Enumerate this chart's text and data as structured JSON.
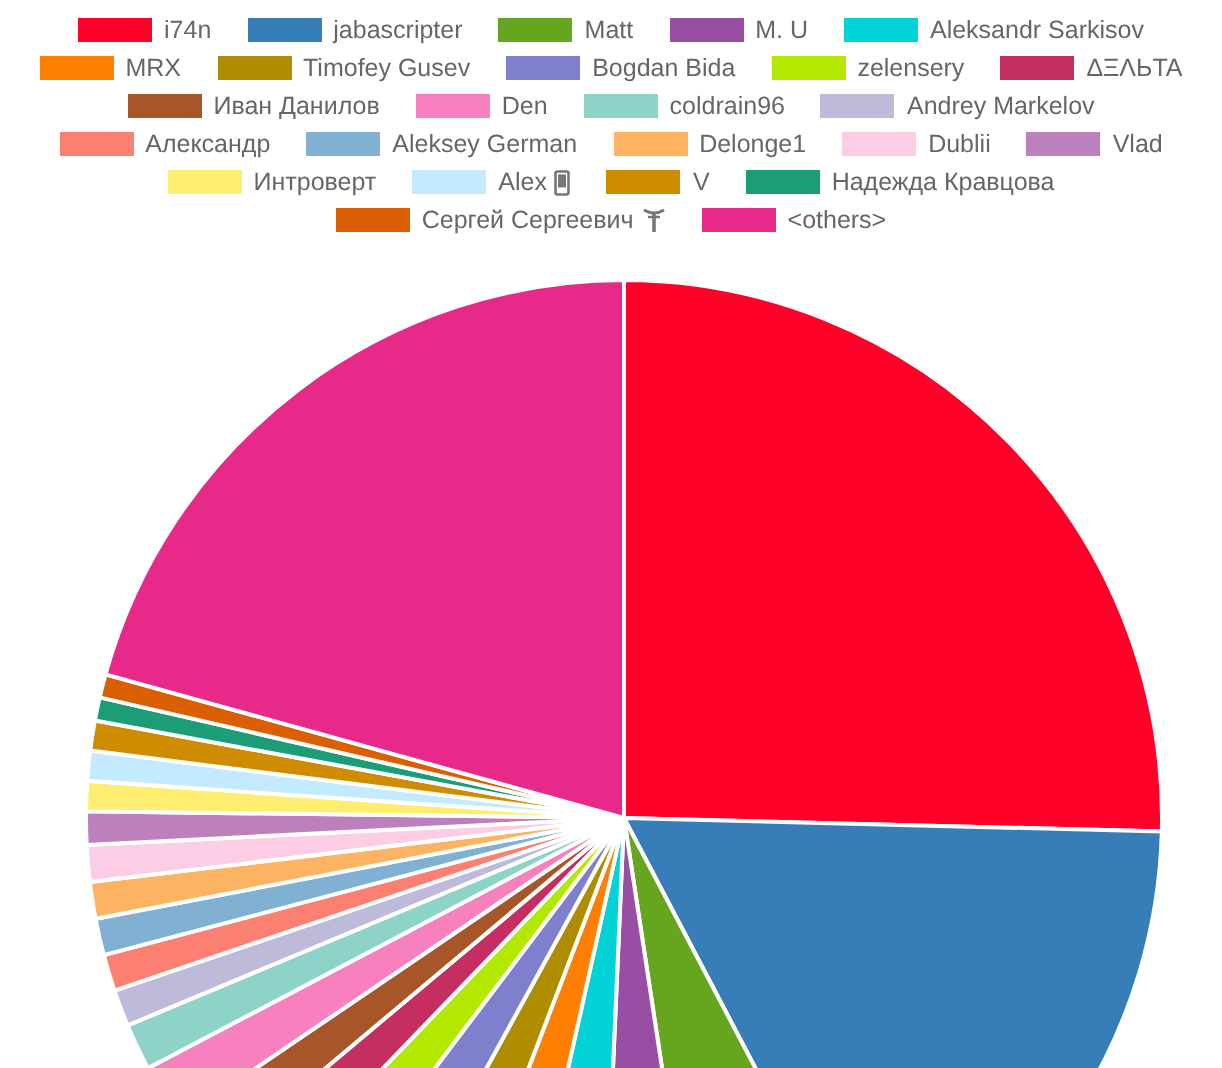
{
  "chart_data": {
    "type": "pie",
    "legend": "top",
    "categories": [
      "i74n",
      "jabascripter",
      "Matt",
      "M. U",
      "Aleksandr Sarkisov",
      "MRX",
      "Timofey Gusev",
      "Bogdan Bida",
      "zelensery",
      "ΔΞΛЬTA",
      "Иван Данилов",
      "Den",
      "coldrain96",
      "Andrey Markelov",
      "Александр",
      "Aleksey German",
      "Delonge1",
      "Dublii",
      "Vlad",
      "Интроверт",
      "Alex",
      "V",
      "Надежда Кравцова",
      "Сергей Сергеевич",
      "<others>"
    ],
    "values": [
      25.4,
      16.9,
      5.3,
      3.1,
      2.8,
      2.3,
      2.2,
      2.3,
      1.9,
      1.7,
      1.6,
      1.8,
      1.4,
      1.1,
      1.1,
      1.1,
      1.1,
      1.1,
      1.0,
      0.9,
      0.9,
      0.9,
      0.7,
      0.7,
      20.7
    ],
    "colors": [
      "#ff0029",
      "#377eb8",
      "#66a61e",
      "#984ea3",
      "#00d2d5",
      "#ff7f00",
      "#af8d00",
      "#7f80cd",
      "#b3e900",
      "#c42e60",
      "#a65628",
      "#f781bf",
      "#8dd3c7",
      "#bebada",
      "#fb8072",
      "#80b1d3",
      "#fdb462",
      "#fccde5",
      "#bc80bd",
      "#ffed6f",
      "#c4eaff",
      "#cf8c00",
      "#1b9e77",
      "#d95f02",
      "#e7298a"
    ]
  }
}
